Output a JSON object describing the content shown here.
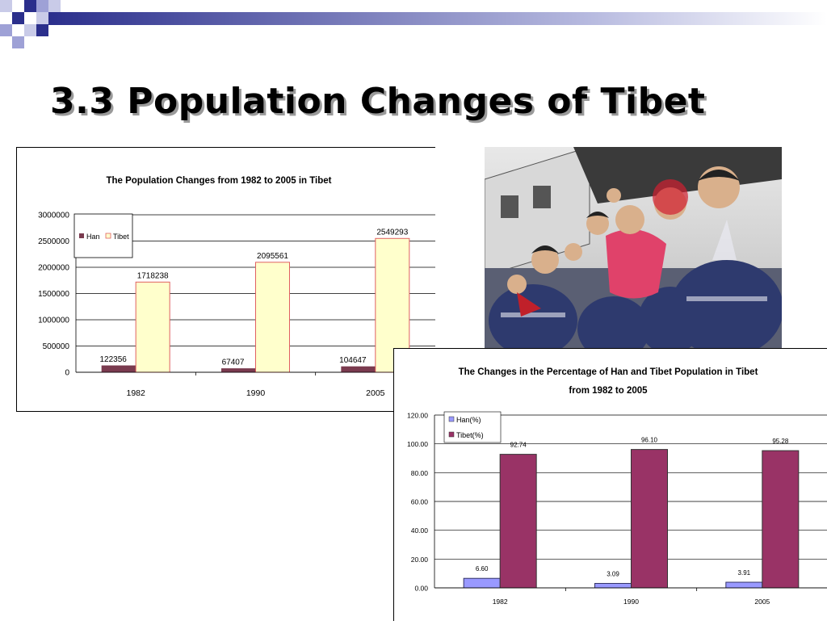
{
  "slide": {
    "title": "3.3 Population Changes of Tibet"
  },
  "photo": {
    "description_icon": "group-of-children-photo"
  },
  "colors": {
    "accent_navy": "#2b2f8c",
    "han_bar_1": "#7a3b4f",
    "tibet_bar_1": "#ffffcc",
    "tibet_border_1": "#e06060",
    "han_bar_2": "#9999ff",
    "tibet_bar_2": "#993366"
  },
  "chart_data": [
    {
      "type": "bar",
      "title": "The Population Changes from 1982 to 2005 in Tibet",
      "categories": [
        "1982",
        "1990",
        "2005"
      ],
      "series": [
        {
          "name": "Han",
          "values": [
            122356,
            67407,
            104647
          ]
        },
        {
          "name": "Tibet",
          "values": [
            1718238,
            2095561,
            2549293
          ]
        }
      ],
      "data_labels": {
        "Han": [
          "122356",
          "67407",
          "104647"
        ],
        "Tibet": [
          "1718238",
          "2095561",
          "2549293"
        ]
      },
      "yticks": [
        "0",
        "500000",
        "1000000",
        "1500000",
        "2000000",
        "2500000",
        "3000000"
      ],
      "ylim": [
        0,
        3000000
      ],
      "grid": true,
      "legend": "top-left"
    },
    {
      "type": "bar",
      "title_line1": "The Changes in the Percentage of Han and Tibet Population in Tibet",
      "title_line2": "from 1982 to 2005",
      "categories": [
        "1982",
        "1990",
        "2005"
      ],
      "series": [
        {
          "name": "Han(%)",
          "values": [
            6.6,
            3.09,
            3.91
          ]
        },
        {
          "name": "Tibet(%)",
          "values": [
            92.74,
            96.1,
            95.28
          ]
        }
      ],
      "data_labels": {
        "Han(%)": [
          "6.60",
          "3.09",
          "3.91"
        ],
        "Tibet(%)": [
          "92.74",
          "96.10",
          "95.28"
        ]
      },
      "yticks": [
        "0.00",
        "20.00",
        "40.00",
        "60.00",
        "80.00",
        "100.00",
        "120.00"
      ],
      "ylim": [
        0,
        120
      ],
      "grid": true,
      "legend": "top-left"
    }
  ]
}
